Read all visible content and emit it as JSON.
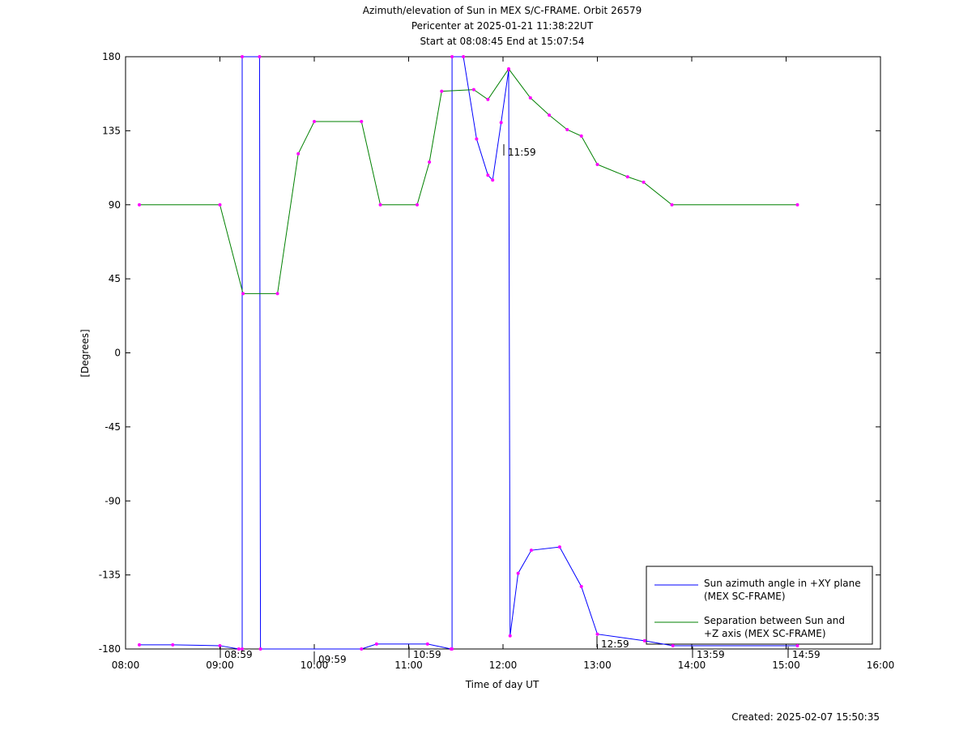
{
  "chart_data": {
    "type": "line",
    "title": "Azimuth/elevation of Sun in MEX S/C-FRAME.  Orbit 26579",
    "subtitle": "Pericenter at 2025-01-21 11:38:22UT",
    "subtitle2": "Start at 08:08:45 End at 15:07:54",
    "x_label": "Time of day UT",
    "y_label": "[Degrees]",
    "footer": "Created: 2025-02-07 15:50:35",
    "xlim": [
      8,
      16
    ],
    "xticks": [
      {
        "value": 8,
        "label": "08:00"
      },
      {
        "value": 9,
        "label": "09:00"
      },
      {
        "value": 10,
        "label": "10:00"
      },
      {
        "value": 11,
        "label": "11:00"
      },
      {
        "value": 12,
        "label": "12:00"
      },
      {
        "value": 13,
        "label": "13:00"
      },
      {
        "value": 14,
        "label": "14:00"
      },
      {
        "value": 15,
        "label": "15:00"
      },
      {
        "value": 16,
        "label": "16:00"
      }
    ],
    "ylim": [
      -180,
      180
    ],
    "yticks": [
      180,
      135,
      90,
      45,
      0,
      -45,
      -90,
      -135,
      -180
    ],
    "legend": "bottom-right",
    "marker_color": "#ff00ff",
    "annotations": [
      "08:59",
      "09:59",
      "10:59",
      "11:59",
      "12:59",
      "13:59",
      "14:59"
    ],
    "series": [
      {
        "name": "Sun azimuth angle in +XY plane (MEX SC-FRAME)",
        "color": "#0000ff",
        "x": [
          8.146,
          8.5,
          9.0,
          9.2,
          9.236,
          9.236,
          9.42,
          9.43,
          10.5,
          10.66,
          11.2,
          11.45,
          11.46,
          11.46,
          11.58,
          11.72,
          11.84,
          11.89,
          11.98,
          12.06,
          12.075,
          12.16,
          12.3,
          12.6,
          12.83,
          13.0,
          13.5,
          13.8,
          15.12
        ],
        "values": [
          -177.5,
          -177.5,
          -178,
          -180,
          -180,
          180,
          180,
          -180,
          -180,
          -177,
          -177,
          -180,
          -180,
          180,
          180,
          130,
          108,
          105,
          140,
          172,
          -172,
          -134,
          -120,
          -118,
          -142,
          -171,
          -175,
          -178,
          -178
        ]
      },
      {
        "name": "Separation between Sun and +Z axis (MEX SC-FRAME)",
        "color": "#008000",
        "x": [
          8.146,
          9.0,
          9.245,
          9.61,
          9.83,
          10.0,
          10.5,
          10.7,
          11.09,
          11.22,
          11.35,
          11.69,
          11.84,
          12.06,
          12.29,
          12.49,
          12.68,
          12.83,
          13.0,
          13.32,
          13.49,
          13.79,
          15.12
        ],
        "values": [
          90,
          90,
          36,
          36,
          121,
          140.6,
          140.6,
          90,
          90,
          116,
          159,
          160,
          154,
          172.6,
          155,
          144.5,
          135.7,
          131.8,
          114.5,
          107,
          103.7,
          90,
          90
        ]
      }
    ]
  }
}
